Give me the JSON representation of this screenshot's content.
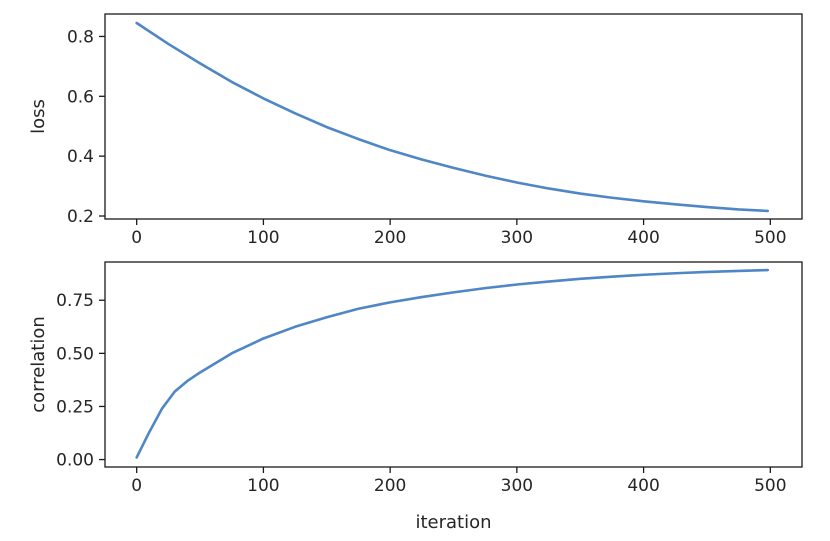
{
  "chart_data": [
    {
      "type": "line",
      "title": "",
      "xlabel": "",
      "ylabel": "loss",
      "xlim": [
        -25,
        525
      ],
      "ylim": [
        0.19,
        0.875
      ],
      "x_ticks": [
        0,
        100,
        200,
        300,
        400,
        500
      ],
      "y_ticks": [
        0.2,
        0.4,
        0.6,
        0.8
      ],
      "y_tick_format": 1,
      "grid": false,
      "color": "#4f86c6",
      "series": [
        {
          "x": [
            0,
            25,
            50,
            75,
            100,
            125,
            150,
            175,
            200,
            225,
            250,
            275,
            300,
            325,
            350,
            375,
            400,
            425,
            450,
            475,
            498
          ],
          "values": [
            0.845,
            0.775,
            0.71,
            0.648,
            0.593,
            0.543,
            0.497,
            0.457,
            0.42,
            0.389,
            0.361,
            0.335,
            0.312,
            0.292,
            0.275,
            0.261,
            0.249,
            0.239,
            0.23,
            0.222,
            0.217
          ]
        }
      ]
    },
    {
      "type": "line",
      "title": "",
      "xlabel": "iteration",
      "ylabel": "correlation",
      "xlim": [
        -25,
        525
      ],
      "ylim": [
        -0.035,
        0.93
      ],
      "x_ticks": [
        0,
        100,
        200,
        300,
        400,
        500
      ],
      "y_ticks": [
        0.0,
        0.25,
        0.5,
        0.75
      ],
      "y_tick_format": 2,
      "grid": false,
      "color": "#4f86c6",
      "series": [
        {
          "x": [
            0,
            10,
            20,
            30,
            40,
            50,
            75,
            100,
            125,
            150,
            175,
            200,
            225,
            250,
            275,
            300,
            325,
            350,
            375,
            400,
            425,
            450,
            475,
            498
          ],
          "values": [
            0.01,
            0.13,
            0.24,
            0.32,
            0.37,
            0.41,
            0.5,
            0.57,
            0.625,
            0.67,
            0.71,
            0.74,
            0.765,
            0.787,
            0.807,
            0.824,
            0.838,
            0.851,
            0.861,
            0.87,
            0.877,
            0.883,
            0.888,
            0.892
          ]
        }
      ]
    }
  ]
}
